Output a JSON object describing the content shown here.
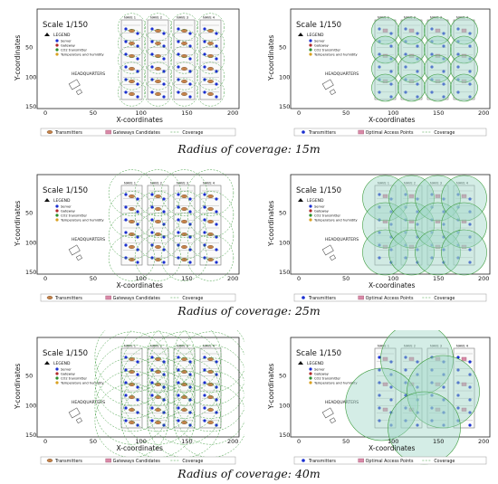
{
  "panels": [
    {
      "id": "r15-left",
      "scale": "Scale 1/150",
      "legend_title": "LEGEND",
      "legend": [
        "Server",
        "Gateway",
        "CO2 transmitter",
        "Temperature and humidity"
      ],
      "hq": "HEADQUARTERS",
      "ylabel": "Y-coordinates",
      "xlabel": "X-coordinates",
      "xticks": [
        "0",
        "50",
        "100",
        "150",
        "200"
      ],
      "yticks": [
        "50",
        "100",
        "150"
      ],
      "bottom": [
        "Transmitters",
        "Gateways Candidates",
        "Coverage"
      ],
      "naves": [
        "NAVE 1",
        "NAVE 2",
        "NAVE 3",
        "NAVE 4"
      ]
    },
    {
      "id": "r15-right",
      "scale": "Scale 1/150",
      "legend_title": "LEGEND",
      "legend": [
        "Server",
        "Gateway",
        "CO2 transmitter",
        "Temperature and humidity"
      ],
      "hq": "HEADQUARTERS",
      "ylabel": "Y-coordinates",
      "xlabel": "X-coordinates",
      "xticks": [
        "0",
        "50",
        "100",
        "150",
        "200"
      ],
      "yticks": [
        "50",
        "100",
        "150"
      ],
      "bottom": [
        "Transmitters",
        "Optimal Access Points",
        "Coverage"
      ],
      "naves": [
        "NAVE 1",
        "NAVE 2",
        "NAVE 3",
        "NAVE 4"
      ]
    },
    {
      "id": "r25-left",
      "scale": "Scale 1/150",
      "legend_title": "LEGEND",
      "legend": [
        "Server",
        "Gateway",
        "CO2 transmitter",
        "Temperature and humidity"
      ],
      "hq": "HEADQUARTERS",
      "ylabel": "Y-coordinates",
      "xlabel": "X-coordinates",
      "xticks": [
        "0",
        "50",
        "100",
        "150",
        "200"
      ],
      "yticks": [
        "50",
        "100",
        "150"
      ],
      "bottom": [
        "Transmitters",
        "Gateways Candidates",
        "Coverage"
      ],
      "naves": [
        "NAVE 1",
        "NAVE 2",
        "NAVE 3",
        "NAVE 4"
      ]
    },
    {
      "id": "r25-right",
      "scale": "Scale 1/150",
      "legend_title": "LEGEND",
      "legend": [
        "Server",
        "Gateway",
        "CO2 transmitter",
        "Temperature and humidity"
      ],
      "hq": "HEADQUARTERS",
      "ylabel": "Y-coordinates",
      "xlabel": "X-coordinates",
      "xticks": [
        "0",
        "50",
        "100",
        "150",
        "200"
      ],
      "yticks": [
        "50",
        "100",
        "150"
      ],
      "bottom": [
        "Transmitters",
        "Optimal Access Points",
        "Coverage"
      ],
      "naves": [
        "NAVE 1",
        "NAVE 2",
        "NAVE 3",
        "NAVE 4"
      ]
    },
    {
      "id": "r40-left",
      "scale": "Scale 1/150",
      "legend_title": "LEGEND",
      "legend": [
        "Server",
        "Gateway",
        "CO2 transmitter",
        "Temperature and humidity"
      ],
      "hq": "HEADQUARTERS",
      "ylabel": "Y-coordinates",
      "xlabel": "X-coordinates",
      "xticks": [
        "0",
        "50",
        "100",
        "150",
        "200"
      ],
      "yticks": [
        "50",
        "100",
        "150"
      ],
      "bottom": [
        "Transmitters",
        "Gateways Candidates",
        "Coverage"
      ],
      "naves": [
        "NAVE 1",
        "NAVE 2",
        "NAVE 3",
        "NAVE 4"
      ]
    },
    {
      "id": "r40-right",
      "scale": "Scale 1/150",
      "legend_title": "LEGEND",
      "legend": [
        "Server",
        "Gateway",
        "CO2 transmitter",
        "Temperature and humidity"
      ],
      "hq": "HEADQUARTERS",
      "ylabel": "Y-coordinates",
      "xlabel": "X-coordinates",
      "xticks": [
        "0",
        "50",
        "100",
        "150",
        "200"
      ],
      "yticks": [
        "50",
        "100",
        "150"
      ],
      "bottom": [
        "Transmitters",
        "Optimal Access Points",
        "Coverage"
      ],
      "naves": [
        "NAVE 1",
        "NAVE 2",
        "NAVE 3",
        "NAVE 4"
      ]
    }
  ],
  "captions": {
    "r15": "Radius of coverage: 15m",
    "r25": "Radius of coverage: 25m",
    "r40": "Radius of coverage: 40m"
  },
  "colors": {
    "coverage_line": "#3a9a3a",
    "coverage_fill": "#9fd8c8",
    "transmitter": "#1a2fd0",
    "gateway_box": "#d98aa8",
    "nave_outline": "#777777"
  }
}
